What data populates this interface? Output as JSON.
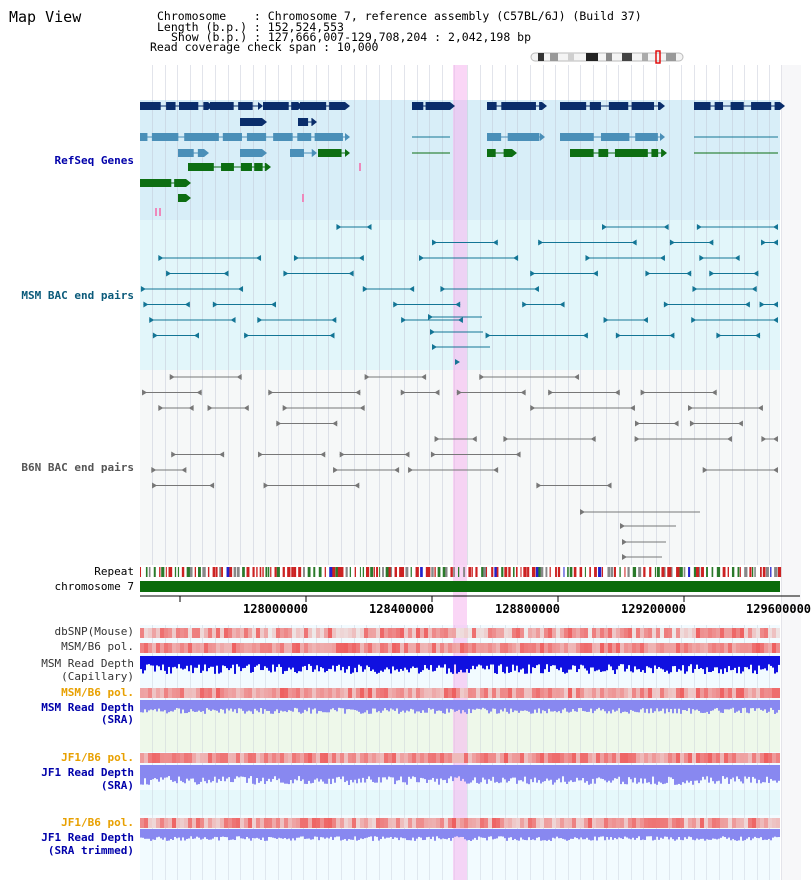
{
  "view_title": "Map View",
  "header": {
    "chromosome_line": "Chromosome    : Chromosome 7, reference assembly (C57BL/6J) (Build 37)",
    "length_line": "Length (b.p.) : 152,524,553",
    "show_line": "Show (b.p.) : 127,666,007-129,708,204 : 2,042,198 bp",
    "span_line": "Read coverage check span : 10,000"
  },
  "tracks": {
    "refseq": "RefSeq Genes",
    "msm_bac": "MSM BAC end pairs",
    "b6n_bac": "B6N BAC end pairs",
    "repeat": "Repeat",
    "chromosome": "chromosome 7",
    "dbsnp": "dbSNP(Mouse)",
    "msm_b6_pol_1": "MSM/B6 pol.",
    "msm_depth_cap_1": "MSM Read Depth",
    "msm_depth_cap_2": "(Capillary)",
    "msm_b6_pol_2": "MSM/B6 pol.",
    "msm_depth_sra_1": "MSM Read Depth",
    "msm_depth_sra_2": "(SRA)",
    "jf1_b6_pol_1": "JF1/B6 pol.",
    "jf1_depth_sra_1": "JF1 Read Depth",
    "jf1_depth_sra_2": "(SRA)",
    "jf1_b6_pol_2": "JF1/B6 pol.",
    "jf1_depth_trim_1": "JF1 Read Depth",
    "jf1_depth_trim_2": "(SRA trimmed)"
  },
  "axis": {
    "ticks": [
      "128000000",
      "128400000",
      "128800000",
      "129200000",
      "129600000"
    ]
  },
  "colors": {
    "label_blue": "#0000aa",
    "label_teal": "#0a5a7a",
    "label_gray": "#555555",
    "label_orange": "#e8a000",
    "refseq_bg": "#d8eef8",
    "msm_bg": "#e2f6fa",
    "b6n_bg": "#f6f8f8",
    "highlight": "#f6d2f0",
    "gene_dark": "#0a2d6b",
    "gene_mid": "#4a8fb8",
    "gene_green": "#0d6e12",
    "bac_teal": "#137595",
    "bac_gray": "#777777",
    "chrom_green": "#0b6b0b",
    "depth_blue": "#1010e0",
    "depth_light": "#8888f0",
    "pol_red": "#ee3030"
  }
}
